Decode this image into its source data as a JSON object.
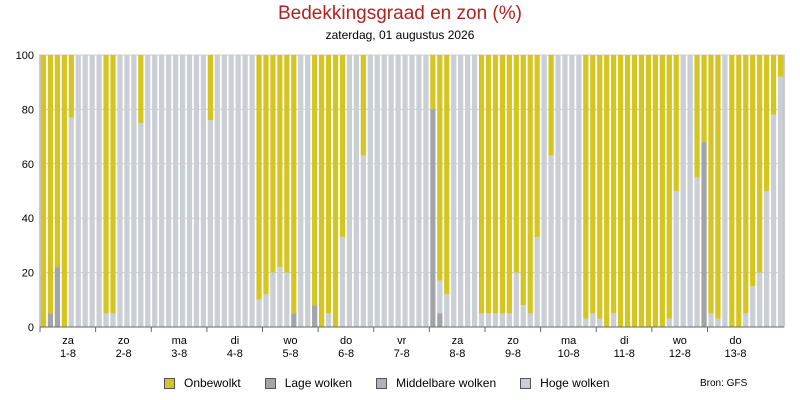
{
  "title": "Bedekkingsgraad en zon (%)",
  "subtitle": "zaterdag, 01 augustus 2026",
  "source": "Bron: GFS",
  "colors": {
    "sun": "#d4c520",
    "low": "#a2a4a8",
    "mid": "#afb2b6",
    "high": "#c9cfd5"
  },
  "legend": [
    {
      "label": "Onbewolkt",
      "key": "sun"
    },
    {
      "label": "Lage wolken",
      "key": "low"
    },
    {
      "label": "Middelbare wolken",
      "key": "mid"
    },
    {
      "label": "Hoge wolken",
      "key": "high"
    }
  ],
  "chart_data": {
    "type": "bar",
    "stacked": true,
    "ylim": [
      0,
      100
    ],
    "yticks": [
      0,
      20,
      40,
      60,
      80,
      100
    ],
    "day_labels": [
      [
        "za",
        "1-8"
      ],
      [
        "zo",
        "2-8"
      ],
      [
        "ma",
        "3-8"
      ],
      [
        "di",
        "4-8"
      ],
      [
        "wo",
        "5-8"
      ],
      [
        "do",
        "6-8"
      ],
      [
        "vr",
        "7-8"
      ],
      [
        "za",
        "8-8"
      ],
      [
        "zo",
        "9-8"
      ],
      [
        "ma",
        "10-8"
      ],
      [
        "di",
        "11-8"
      ],
      [
        "wo",
        "12-8"
      ],
      [
        "do",
        "13-8"
      ]
    ],
    "cloud_total": [
      0,
      5,
      22,
      0,
      77,
      100,
      100,
      100,
      100,
      5,
      5,
      100,
      100,
      100,
      75,
      100,
      100,
      100,
      100,
      100,
      100,
      100,
      100,
      100,
      76,
      100,
      100,
      100,
      100,
      100,
      100,
      10,
      12,
      20,
      22,
      20,
      5,
      100,
      100,
      8,
      0,
      5,
      0,
      33,
      100,
      100,
      63,
      100,
      100,
      100,
      100,
      100,
      100,
      100,
      100,
      100,
      80,
      17,
      12,
      100,
      100,
      100,
      100,
      5,
      5,
      5,
      5,
      5,
      20,
      8,
      5,
      33,
      100,
      63,
      100,
      100,
      100,
      100,
      3,
      5,
      3,
      0,
      5,
      0,
      0,
      0,
      0,
      0,
      0,
      0,
      3,
      50,
      100,
      100,
      55,
      68,
      5,
      3,
      100,
      0,
      0,
      5,
      15,
      20,
      50,
      78,
      92
    ],
    "cloud_low": [
      0,
      5,
      22,
      0,
      0,
      0,
      0,
      0,
      0,
      0,
      0,
      0,
      0,
      0,
      0,
      0,
      0,
      0,
      0,
      0,
      0,
      0,
      0,
      0,
      0,
      0,
      0,
      0,
      0,
      0,
      0,
      0,
      0,
      0,
      0,
      0,
      5,
      0,
      0,
      8,
      0,
      0,
      0,
      0,
      0,
      0,
      0,
      0,
      0,
      0,
      0,
      0,
      0,
      0,
      0,
      0,
      80,
      5,
      0,
      0,
      0,
      0,
      0,
      0,
      0,
      0,
      0,
      0,
      0,
      0,
      0,
      0,
      0,
      0,
      0,
      0,
      0,
      0,
      0,
      0,
      0,
      0,
      0,
      0,
      0,
      0,
      0,
      0,
      0,
      0,
      0,
      0,
      0,
      0,
      0,
      68,
      0,
      0,
      0,
      0,
      0,
      0,
      0,
      0,
      0,
      0,
      0
    ]
  }
}
